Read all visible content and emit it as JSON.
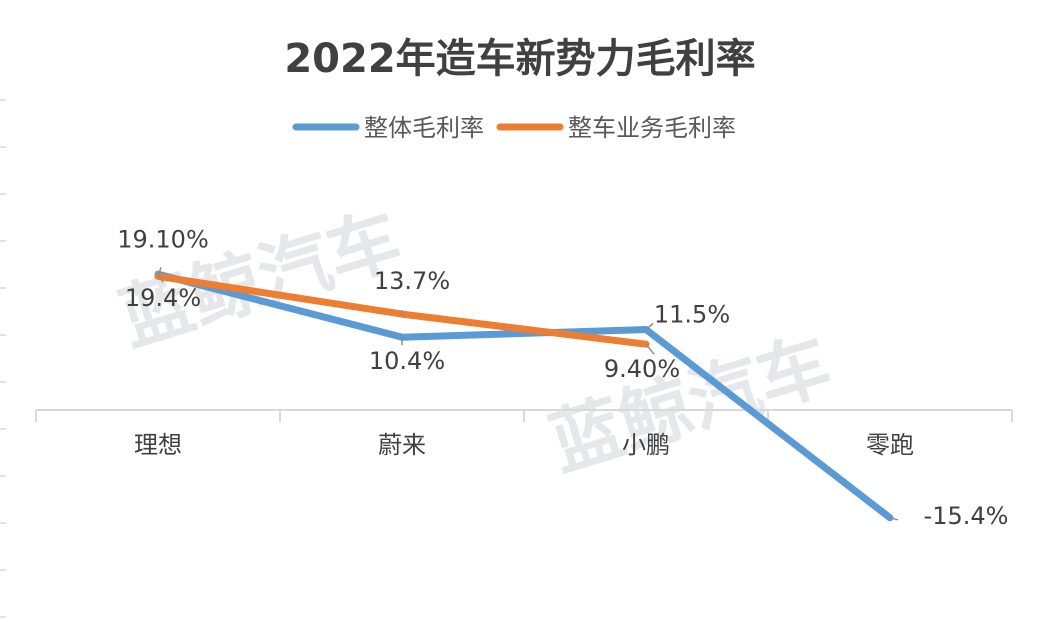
{
  "chart_data": {
    "type": "line",
    "title": "2022年造车新势力毛利率",
    "categories": [
      "理想",
      "蔚来",
      "小鹏",
      "零跑"
    ],
    "series": [
      {
        "name": "整体毛利率",
        "color": "#5b9bd5",
        "values": [
          19.4,
          10.4,
          11.5,
          -15.4
        ],
        "labels": [
          "19.4%",
          "10.4%",
          "11.5%",
          "-15.4%"
        ]
      },
      {
        "name": "整车业务毛利率",
        "color": "#ed7d31",
        "values": [
          19.1,
          13.7,
          9.4,
          null
        ],
        "labels": [
          "19.10%",
          "13.7%",
          "9.40%",
          ""
        ]
      }
    ],
    "legend_position": "top",
    "grid": false
  },
  "watermark": {
    "text_1": "蓝鲸汽车",
    "text_2": "蓝鲸汽车"
  }
}
